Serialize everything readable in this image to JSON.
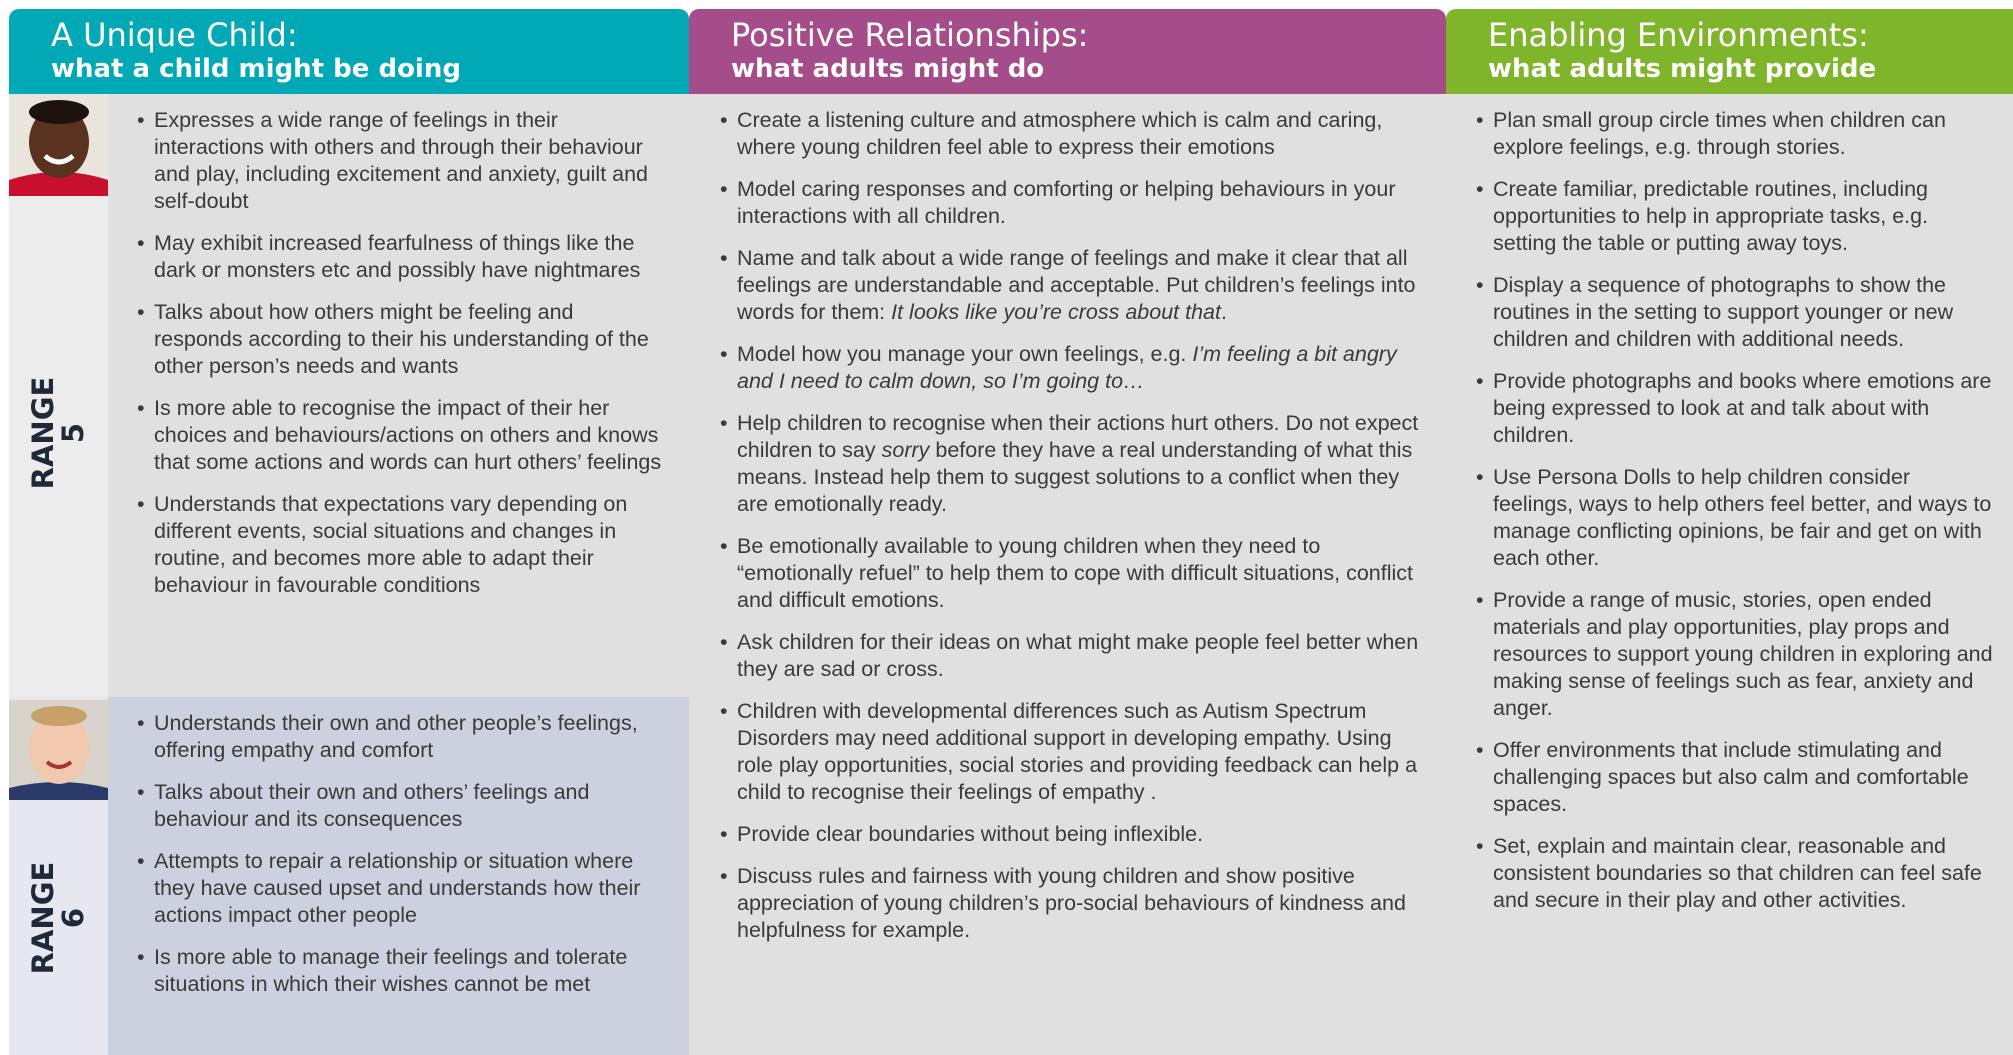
{
  "columns": [
    {
      "title": "A Unique Child:",
      "subtitle": "what a child might be doing"
    },
    {
      "title": "Positive Relationships:",
      "subtitle": "what adults might do"
    },
    {
      "title": "Enabling Environments:",
      "subtitle": "what adults might provide"
    }
  ],
  "ranges": [
    {
      "label": "RANGE",
      "number": 5,
      "items": [
        [
          "Expresses a wide range of feelings in their interactions with others and through their behaviour and play, including excitement and anxiety, guilt and self-doubt"
        ],
        [
          "May exhibit increased fearfulness of things like the dark or monsters etc and possibly have nightmares"
        ],
        [
          "Talks about how others might be feeling and responds according to their his understanding of the other person’s needs and wants"
        ],
        [
          "Is more able to recognise the impact of their her choices and behaviours/actions on others and knows that some actions and words can hurt others’ feelings"
        ],
        [
          "Understands that expectations vary depending on different events, social situations and changes in routine, and becomes more able to adapt their behaviour in favourable conditions"
        ]
      ]
    },
    {
      "label": "RANGE",
      "number": 6,
      "items": [
        [
          "Understands their own and other people’s feelings, offering empathy and comfort"
        ],
        [
          "Talks about their own and others’ feelings and behaviour and its consequences"
        ],
        [
          "Attempts to repair a relationship or situation where they have caused upset and understands how their actions impact other people"
        ],
        [
          "Is more able to manage their feelings and tolerate situations in which their wishes cannot be met"
        ]
      ]
    }
  ],
  "adults_do": [
    [
      "Create a listening culture and atmosphere which is calm and caring, where young children feel able to express their emotions"
    ],
    [
      "Model caring responses and comforting or helping behaviours in your interactions with all children."
    ],
    [
      "Name and talk about a wide range of feelings and make it clear that all feelings are understandable and acceptable. Put children’s feelings into words for them: ",
      {
        "em": "It looks like you’re cross about that"
      },
      "."
    ],
    [
      "Model how you manage your own feelings, e.g. ",
      {
        "em": "I’m feeling a bit angry and I need to calm down, so I’m going to…"
      }
    ],
    [
      "Help children to recognise when their actions hurt others.  Do not expect children to say ",
      {
        "em": "sorry"
      },
      " before they have a real understanding of what this means. Instead help them to suggest solutions to a conflict when they are emotionally ready."
    ],
    [
      "Be emotionally available to young children when they need to “emotionally refuel” to help them to cope with difficult situations, conflict and difficult emotions."
    ],
    [
      "Ask children for their ideas on what might make people feel better when they are sad or cross."
    ],
    [
      "Children with developmental differences such as Autism Spectrum Disorders may need additional support in developing empathy. Using role play opportunities, social stories and providing feedback can help a child to recognise their feelings of empathy ."
    ],
    [
      "Provide clear boundaries without being inflexible."
    ],
    [
      "Discuss rules and fairness with young children and show positive appreciation of young children’s pro-social behaviours of kindness and helpfulness for example."
    ]
  ],
  "environments": [
    [
      "Plan small group circle times when children can explore feelings, e.g. through stories."
    ],
    [
      "Create familiar, predictable routines, including opportunities to help in appropriate tasks, e.g. setting the table or putting away toys."
    ],
    [
      "Display a sequence of photographs to show the routines in the setting to support younger or new children and children with additional needs."
    ],
    [
      "Provide photographs and books where emotions are being expressed to look at and talk about with children."
    ],
    [
      "Use Persona Dolls to help children consider feelings, ways to help others feel better, and ways to manage conflicting opinions, be fair and get on with each other."
    ],
    [
      "Provide a range of music, stories, open ended materials and play opportunities, play props and resources to support young children in exploring and making sense of feelings such as fear, anxiety and anger."
    ],
    [
      "Offer environments that include stimulating and challenging spaces but also calm and comfortable spaces."
    ],
    [
      "Set, explain and maintain clear, reasonable and consistent boundaries so that children can feel safe and secure in their play and other activities."
    ]
  ]
}
